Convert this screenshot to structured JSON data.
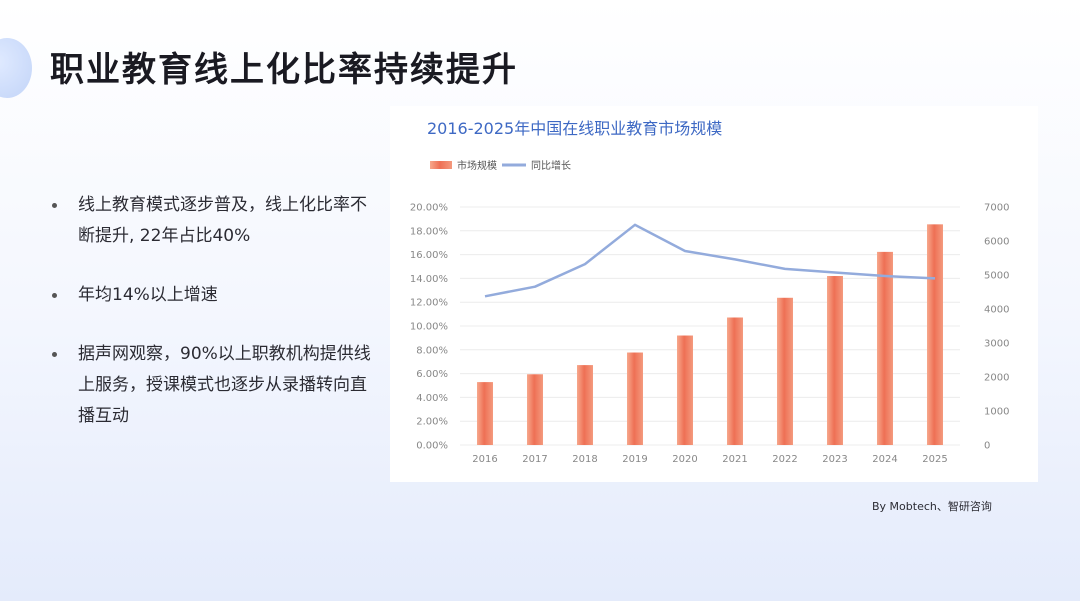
{
  "title": "职业教育线上化比率持续提升",
  "bullets": [
    "线上教育模式逐步普及，线上化比率不断提升, 22年占比40%",
    "年均14%以上增速",
    "据声网观察，90%以上职教机构提供线上服务，授课模式也逐步从录播转向直播互动"
  ],
  "source": "By  Mobtech、智研咨询",
  "chart_data": {
    "type": "bar+line",
    "title": "2016-2025年中国在线职业教育市场规模",
    "categories": [
      "2016",
      "2017",
      "2018",
      "2019",
      "2020",
      "2021",
      "2022",
      "2023",
      "2024",
      "2025"
    ],
    "series": [
      {
        "name": "市场规模",
        "type": "bar",
        "axis": "right",
        "color": "#ee7055",
        "values": [
          1850,
          2080,
          2350,
          2720,
          3220,
          3750,
          4330,
          4970,
          5680,
          6490
        ]
      },
      {
        "name": "同比增长",
        "type": "line",
        "axis": "left",
        "color": "#93abdc",
        "values": [
          12.5,
          13.3,
          15.2,
          18.5,
          16.3,
          15.6,
          14.8,
          14.5,
          14.2,
          14.0
        ]
      }
    ],
    "y_left": {
      "min": 0,
      "max": 20,
      "ticks": [
        "0.00%",
        "2.00%",
        "4.00%",
        "6.00%",
        "8.00%",
        "10.00%",
        "12.00%",
        "14.00%",
        "16.00%",
        "18.00%",
        "20.00%"
      ]
    },
    "y_right": {
      "min": 0,
      "max": 7000,
      "ticks": [
        "0",
        "1000",
        "2000",
        "3000",
        "4000",
        "5000",
        "6000",
        "7000"
      ]
    },
    "grid": true,
    "legend_position": "top-left"
  }
}
